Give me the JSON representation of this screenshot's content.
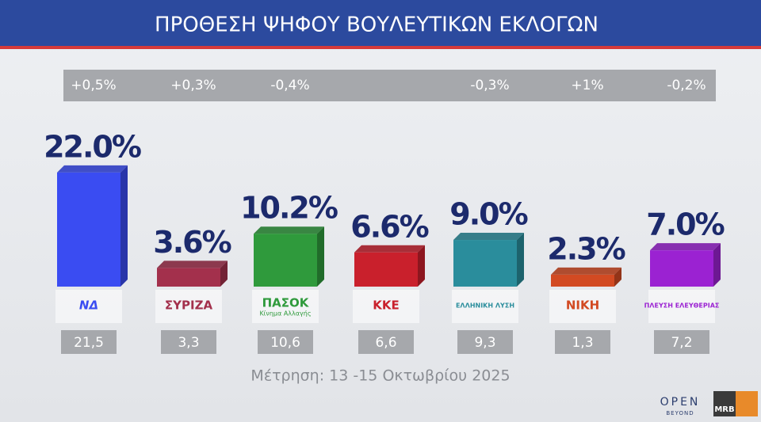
{
  "chart_data": {
    "type": "bar3d",
    "title": "ΠΡΟΘΕΣΗ ΨΗΦΟΥ ΒΟΥΛΕΥΤΙΚΩΝ ΕΚΛΟΓΩΝ",
    "categories": [
      "ΝΔ",
      "ΣΥΡΙΖΑ",
      "ΠΑΣΟΚ",
      "ΚΚΕ",
      "ΕΛΛΗΝΙΚΗ ΛΥΣΗ",
      "ΝΙΚΗ",
      "ΠΛΕΥΣΗ ΕΛΕΥΘΕΡΙΑΣ"
    ],
    "annotations": [
      "Κίνημα Αλλαγής"
    ],
    "colors": [
      "#3a4cf2",
      "#a3304c",
      "#2f9a3c",
      "#c9202c",
      "#2a8d9c",
      "#d24a22",
      "#9b22d2"
    ],
    "values": [
      22.0,
      3.6,
      10.2,
      6.6,
      9.0,
      2.3,
      7.0
    ],
    "value_labels": [
      "22.0%",
      "3.6%",
      "10.2%",
      "6.6%",
      "9.0%",
      "2.3%",
      "7.0%"
    ],
    "previous": {
      "values": [
        21.5,
        3.3,
        10.6,
        6.6,
        9.3,
        1.3,
        7.2
      ],
      "value_labels": [
        "21,5",
        "3,3",
        "10,6",
        "6,6",
        "9,3",
        "1,3",
        "7,2"
      ]
    },
    "changes": {
      "values": [
        0.5,
        0.3,
        -0.4,
        null,
        -0.3,
        1,
        -0.2
      ],
      "value_labels": [
        "+0,5%",
        "+0,3%",
        "-0,4%",
        null,
        "-0,3%",
        "+1%",
        "-0,2%"
      ]
    },
    "footnote": "Μέτρηση: 13 -15 Οκτωβρίου 2025"
  },
  "branding": {
    "channel": "OPEN",
    "tagline": "BEYOND",
    "pollster": "MRB"
  }
}
